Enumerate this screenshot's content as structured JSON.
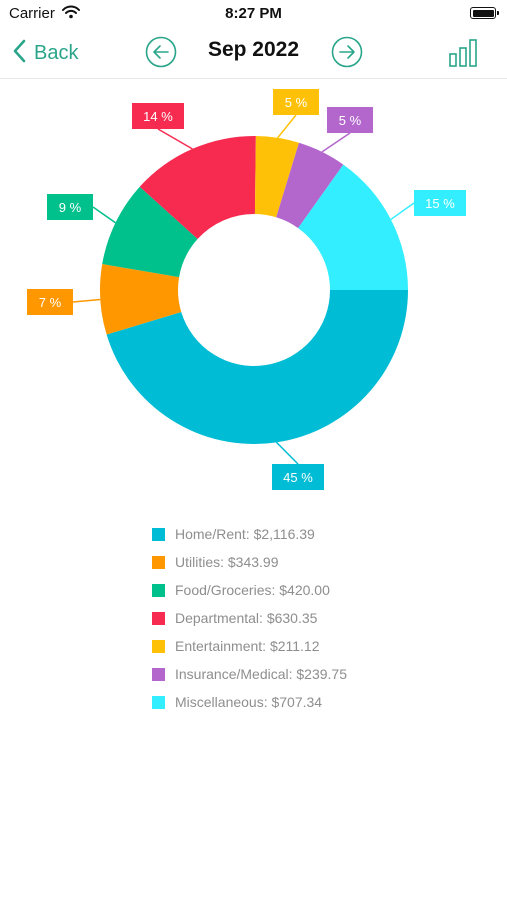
{
  "status_bar": {
    "carrier": "Carrier",
    "time": "8:27 PM",
    "icons": [
      "wifi-icon",
      "battery-icon"
    ]
  },
  "nav": {
    "back_label": "Back",
    "title": "Sep 2022",
    "accent_color": "#2aa58a",
    "icons": [
      "chevron-left-icon",
      "arrow-left-circle-icon",
      "arrow-right-circle-icon",
      "bar-chart-icon"
    ]
  },
  "chart_data": {
    "type": "pie",
    "donut": true,
    "categories": [
      "Home/Rent",
      "Utilities",
      "Food/Groceries",
      "Departmental",
      "Entertainment",
      "Insurance/Medical",
      "Miscellaneous"
    ],
    "values": [
      2116.39,
      343.99,
      420.0,
      630.35,
      211.12,
      239.75,
      707.34
    ],
    "percent_labels": [
      "45 %",
      "7 %",
      "9 %",
      "14 %",
      "5 %",
      "5 %",
      "15 %"
    ],
    "colors": [
      "#00bcd4",
      "#ff9800",
      "#00c08b",
      "#f72b50",
      "#ffc107",
      "#b366cc",
      "#33eeff"
    ],
    "legend_placement": "bottom"
  },
  "legend": [
    {
      "text": "Home/Rent: $2,116.39",
      "color": "#00bcd4"
    },
    {
      "text": "Utilities: $343.99",
      "color": "#ff9800"
    },
    {
      "text": "Food/Groceries: $420.00",
      "color": "#00c08b"
    },
    {
      "text": "Departmental: $630.35",
      "color": "#f72b50"
    },
    {
      "text": "Entertainment: $211.12",
      "color": "#ffc107"
    },
    {
      "text": "Insurance/Medical: $239.75",
      "color": "#b366cc"
    },
    {
      "text": "Miscellaneous: $707.34",
      "color": "#33eeff"
    }
  ]
}
